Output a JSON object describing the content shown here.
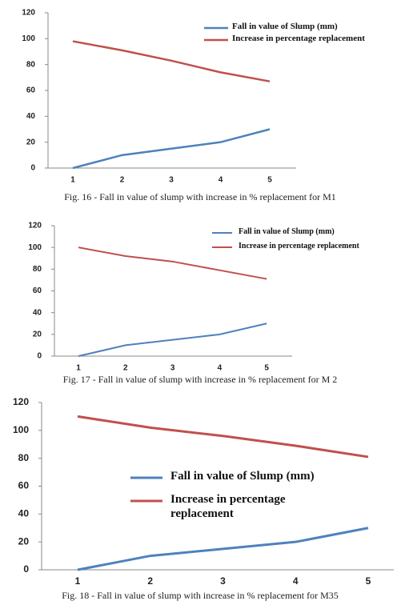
{
  "chart_data": [
    {
      "type": "line",
      "caption": "Fig. 16 - Fall in value of slump with increase in % replacement for M1",
      "categories": [
        "1",
        "2",
        "3",
        "4",
        "5"
      ],
      "series": [
        {
          "name": "Fall in value of Slump (mm)",
          "color": "#4f81bd",
          "values": [
            0,
            10,
            15,
            20,
            30
          ]
        },
        {
          "name": "Increase in percentage replacement",
          "color": "#c0504d",
          "values": [
            98,
            91,
            83,
            74,
            67
          ]
        }
      ],
      "ylim": [
        0,
        120
      ],
      "yticks": [
        0,
        20,
        40,
        60,
        80,
        100,
        120
      ]
    },
    {
      "type": "line",
      "caption": "Fig. 17 - Fall in value of slump with increase in % replacement for M 2",
      "categories": [
        "1",
        "2",
        "3",
        "4",
        "5"
      ],
      "series": [
        {
          "name": "Fall in value of Slump (mm)",
          "color": "#4f81bd",
          "values": [
            0,
            10,
            15,
            20,
            30
          ]
        },
        {
          "name": "Increase in percentage replacement",
          "color": "#c0504d",
          "values": [
            100,
            92,
            87,
            79,
            71
          ]
        }
      ],
      "ylim": [
        0,
        120
      ],
      "yticks": [
        0,
        20,
        40,
        60,
        80,
        100,
        120
      ]
    },
    {
      "type": "line",
      "caption": "Fig. 18 - Fall in value of slump with increase in % replacement for M35",
      "categories": [
        "1",
        "2",
        "3",
        "4",
        "5"
      ],
      "series": [
        {
          "name": "Fall in value of Slump (mm)",
          "color": "#4f81bd",
          "values": [
            0,
            10,
            15,
            20,
            30
          ]
        },
        {
          "name": "Increase in percentage replacement",
          "color": "#c0504d",
          "values": [
            110,
            102,
            96,
            89,
            81
          ]
        }
      ],
      "ylim": [
        0,
        120
      ],
      "yticks": [
        0,
        20,
        40,
        60,
        80,
        100,
        120
      ]
    }
  ]
}
